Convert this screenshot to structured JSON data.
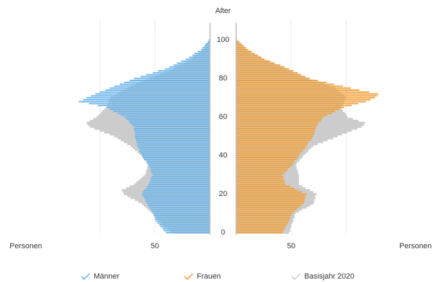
{
  "chart_data": {
    "type": "pyramid",
    "y_title": "Alter",
    "x_title": "Personen",
    "y": [
      0,
      1,
      2,
      3,
      4,
      5,
      6,
      7,
      8,
      9,
      10,
      11,
      12,
      13,
      14,
      15,
      16,
      17,
      18,
      19,
      20,
      21,
      22,
      23,
      24,
      25,
      26,
      27,
      28,
      29,
      30,
      31,
      32,
      33,
      34,
      35,
      36,
      37,
      38,
      39,
      40,
      41,
      42,
      43,
      44,
      45,
      46,
      47,
      48,
      49,
      50,
      51,
      52,
      53,
      54,
      55,
      56,
      57,
      58,
      59,
      60,
      61,
      62,
      63,
      64,
      65,
      66,
      67,
      68,
      69,
      70,
      71,
      72,
      73,
      74,
      75,
      76,
      77,
      78,
      79,
      80,
      81,
      82,
      83,
      84,
      85,
      86,
      87,
      88,
      89,
      90,
      91,
      92,
      93,
      94,
      95,
      96,
      97,
      98,
      99,
      100
    ],
    "ylim": [
      -1,
      109
    ],
    "yticks": [
      0,
      20,
      40,
      60,
      80,
      100
    ],
    "xlim": [
      0,
      125
    ],
    "xticks": [
      50
    ],
    "xgrid": [
      50,
      100
    ],
    "series": [
      {
        "name": "Männer",
        "color": "#6cb6ea",
        "side": "left",
        "values": [
          40,
          42,
          43,
          45,
          46,
          48,
          49,
          50,
          50,
          51,
          52,
          53,
          54,
          55,
          56,
          57,
          58,
          59,
          60,
          61,
          62,
          61,
          60,
          58,
          57,
          56,
          55,
          54,
          54,
          53,
          52,
          53,
          54,
          54,
          55,
          56,
          57,
          58,
          60,
          61,
          62,
          63,
          64,
          64,
          65,
          66,
          66,
          67,
          67,
          68,
          68,
          68,
          68,
          69,
          69,
          69,
          71,
          73,
          74,
          76,
          78,
          81,
          84,
          88,
          91,
          94,
          102,
          110,
          119,
          115,
          112,
          108,
          104,
          100,
          95,
          91,
          87,
          82,
          78,
          73,
          69,
          63,
          58,
          52,
          47,
          41,
          37,
          33,
          30,
          26,
          22,
          19,
          16,
          14,
          11,
          8,
          7,
          5,
          4,
          2,
          1
        ]
      },
      {
        "name": "Frauen",
        "color": "#f0a23e",
        "side": "right",
        "values": [
          42,
          43,
          44,
          45,
          46,
          47,
          48,
          49,
          49,
          50,
          51,
          53,
          55,
          57,
          59,
          61,
          62,
          62,
          63,
          63,
          64,
          60,
          56,
          53,
          49,
          45,
          44,
          44,
          43,
          43,
          42,
          44,
          46,
          47,
          49,
          51,
          52,
          53,
          55,
          56,
          57,
          58,
          60,
          61,
          63,
          64,
          65,
          66,
          68,
          69,
          70,
          71,
          71,
          72,
          72,
          73,
          74,
          75,
          77,
          78,
          79,
          83,
          87,
          90,
          94,
          98,
          105,
          111,
          118,
          122,
          126,
          128,
          129,
          121,
          112,
          104,
          97,
          89,
          82,
          74,
          67,
          63,
          59,
          56,
          52,
          48,
          44,
          40,
          35,
          31,
          26,
          23,
          20,
          17,
          14,
          11,
          9,
          7,
          5,
          3,
          1
        ]
      },
      {
        "name": "Basisjahr 2020",
        "color": "#cccccc",
        "side": "both",
        "values": [
          34,
          36,
          38,
          41,
          43,
          45,
          46,
          48,
          49,
          51,
          52,
          54,
          56,
          58,
          60,
          62,
          65,
          68,
          72,
          75,
          78,
          79,
          80,
          76,
          73,
          69,
          67,
          65,
          63,
          61,
          59,
          58,
          58,
          57,
          57,
          56,
          57,
          58,
          60,
          61,
          62,
          64,
          66,
          68,
          70,
          72,
          75,
          78,
          81,
          84,
          87,
          91,
          96,
          100,
          105,
          109,
          111,
          112,
          109,
          106,
          103,
          101,
          99,
          98,
          96,
          94,
          93,
          92,
          92,
          91,
          90,
          87,
          84,
          81,
          78,
          75,
          71,
          67,
          63,
          59,
          55,
          51,
          46,
          42,
          37,
          33,
          30,
          27,
          23,
          20,
          17,
          15,
          13,
          10,
          8,
          6,
          5,
          4,
          3,
          2,
          1
        ],
        "values_right": [
          48,
          49,
          49,
          50,
          50,
          51,
          52,
          52,
          53,
          53,
          54,
          57,
          60,
          64,
          67,
          70,
          71,
          71,
          72,
          72,
          73,
          70,
          67,
          63,
          60,
          57,
          57,
          57,
          57,
          57,
          57,
          56,
          56,
          55,
          55,
          54,
          55,
          57,
          58,
          60,
          61,
          63,
          65,
          66,
          68,
          70,
          74,
          79,
          83,
          88,
          92,
          96,
          101,
          105,
          110,
          114,
          116,
          117,
          111,
          106,
          101,
          100,
          99,
          97,
          96,
          95,
          96,
          97,
          98,
          99,
          100,
          98,
          96,
          94,
          92,
          90,
          85,
          80,
          75,
          70,
          65,
          61,
          57,
          53,
          49,
          45,
          41,
          37,
          33,
          29,
          25,
          22,
          19,
          15,
          12,
          9,
          7,
          6,
          4,
          3,
          1
        ]
      }
    ]
  }
}
